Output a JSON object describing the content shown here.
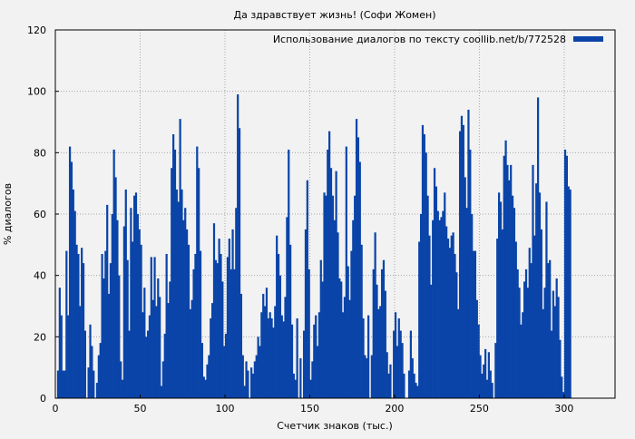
{
  "chart_data": {
    "type": "bar",
    "title": "Да здравствует жизнь!  (Софи Жомен)",
    "xlabel": "Счетчик знаков (тыс.)",
    "ylabel": "% диалогов",
    "xlim": [
      0,
      330
    ],
    "ylim": [
      0,
      120
    ],
    "xticks": [
      0,
      50,
      100,
      150,
      200,
      250,
      300
    ],
    "yticks": [
      0,
      20,
      40,
      60,
      80,
      100,
      120
    ],
    "grid": true,
    "legend_position": "top-right",
    "series": [
      {
        "name": "Использование диалогов по тексту coollib.net/b/772528",
        "color": "#0a44a8",
        "x_step_thousands": 1,
        "values": [
          0,
          9,
          36,
          27,
          9,
          9,
          48,
          27,
          82,
          77,
          68,
          61,
          50,
          47,
          30,
          49,
          44,
          22,
          0,
          10,
          24,
          17,
          9,
          0,
          5,
          14,
          18,
          47,
          39,
          48,
          63,
          34,
          44,
          60,
          81,
          72,
          58,
          40,
          12,
          6,
          56,
          68,
          45,
          22,
          62,
          51,
          66,
          67,
          60,
          55,
          50,
          28,
          36,
          20,
          22,
          27,
          46,
          32,
          46,
          30,
          39,
          33,
          4,
          12,
          21,
          47,
          31,
          38,
          75,
          86,
          81,
          68,
          64,
          91,
          68,
          58,
          62,
          55,
          50,
          29,
          32,
          42,
          47,
          82,
          75,
          48,
          18,
          7,
          6,
          11,
          14,
          26,
          31,
          57,
          45,
          44,
          52,
          47,
          38,
          17,
          21,
          46,
          52,
          42,
          55,
          42,
          62,
          99,
          88,
          34,
          14,
          4,
          12,
          9,
          0,
          10,
          8,
          12,
          14,
          20,
          17,
          28,
          34,
          30,
          36,
          26,
          28,
          26,
          23,
          30,
          53,
          47,
          40,
          27,
          25,
          33,
          59,
          81,
          50,
          24,
          8,
          6,
          26,
          0,
          13,
          0,
          22,
          55,
          71,
          42,
          6,
          12,
          24,
          27,
          17,
          28,
          45,
          38,
          67,
          66,
          81,
          87,
          75,
          66,
          58,
          74,
          54,
          39,
          38,
          28,
          33,
          82,
          43,
          32,
          48,
          58,
          66,
          91,
          85,
          77,
          50,
          26,
          14,
          13,
          27,
          0,
          14,
          42,
          54,
          37,
          29,
          30,
          42,
          45,
          35,
          15,
          8,
          11,
          0,
          22,
          28,
          17,
          26,
          22,
          18,
          8,
          0,
          0,
          9,
          22,
          13,
          8,
          5,
          4,
          51,
          60,
          89,
          86,
          80,
          66,
          53,
          37,
          58,
          75,
          69,
          61,
          58,
          59,
          61,
          67,
          56,
          52,
          49,
          53,
          54,
          47,
          41,
          29,
          87,
          92,
          89,
          72,
          62,
          94,
          81,
          60,
          48,
          48,
          32,
          24,
          14,
          8,
          11,
          16,
          6,
          15,
          9,
          5,
          0,
          18,
          52,
          67,
          64,
          55,
          79,
          84,
          76,
          71,
          76,
          66,
          62,
          51,
          42,
          36,
          24,
          28,
          38,
          42,
          36,
          49,
          44,
          76,
          53,
          70,
          98,
          67,
          55,
          29,
          36,
          64,
          44,
          45,
          22,
          35,
          30,
          39,
          33,
          19,
          7,
          2,
          81,
          79,
          69,
          68,
          0
        ]
      }
    ]
  }
}
